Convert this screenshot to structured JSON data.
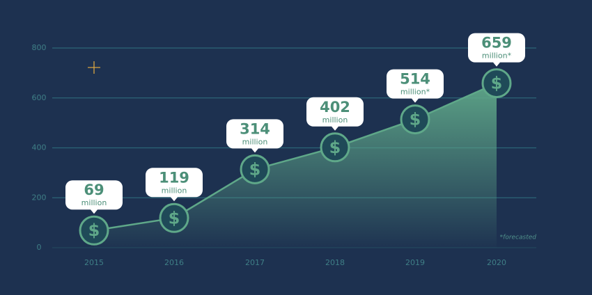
{
  "chart_data": {
    "type": "area",
    "categories": [
      "2015",
      "2016",
      "2017",
      "2018",
      "2019",
      "2020"
    ],
    "values": [
      69,
      119,
      314,
      402,
      514,
      659
    ],
    "unit_labels": [
      "million",
      "million",
      "million",
      "million",
      "million*",
      "million*"
    ],
    "marker_symbol": "$",
    "footnote": "*forecasted",
    "color": "#5fa889",
    "ylim": [
      0,
      800
    ],
    "yticks": [
      0,
      200,
      400,
      600,
      800
    ],
    "grid": true
  }
}
